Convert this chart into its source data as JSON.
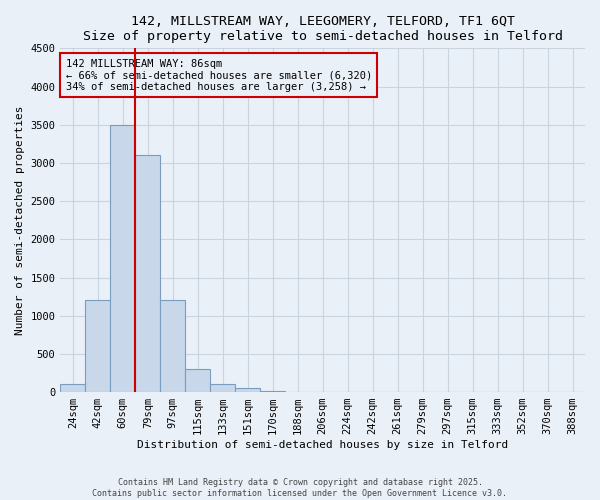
{
  "title1": "142, MILLSTREAM WAY, LEEGOMERY, TELFORD, TF1 6QT",
  "title2": "Size of property relative to semi-detached houses in Telford",
  "xlabel": "Distribution of semi-detached houses by size in Telford",
  "ylabel": "Number of semi-detached properties",
  "categories": [
    "24sqm",
    "42sqm",
    "60sqm",
    "79sqm",
    "97sqm",
    "115sqm",
    "133sqm",
    "151sqm",
    "170sqm",
    "188sqm",
    "206sqm",
    "224sqm",
    "242sqm",
    "261sqm",
    "279sqm",
    "297sqm",
    "315sqm",
    "333sqm",
    "352sqm",
    "370sqm",
    "388sqm"
  ],
  "values": [
    100,
    1200,
    3500,
    3100,
    1200,
    300,
    100,
    50,
    20,
    5,
    2,
    1,
    0,
    0,
    0,
    0,
    0,
    0,
    0,
    0,
    0
  ],
  "bar_color": "#c8d8ea",
  "bar_edge_color": "#7a9cbf",
  "red_line_bin": 3,
  "annotation_title": "142 MILLSTREAM WAY: 86sqm",
  "annotation_line1": "← 66% of semi-detached houses are smaller (6,320)",
  "annotation_line2": "34% of semi-detached houses are larger (3,258) →",
  "annotation_box_color": "#cc0000",
  "ylim": [
    0,
    4500
  ],
  "yticks": [
    0,
    500,
    1000,
    1500,
    2000,
    2500,
    3000,
    3500,
    4000,
    4500
  ],
  "footnote1": "Contains HM Land Registry data © Crown copyright and database right 2025.",
  "footnote2": "Contains public sector information licensed under the Open Government Licence v3.0.",
  "bg_color": "#eaf0f8",
  "grid_color": "#c8d4e0",
  "title_fontsize": 9.5,
  "axis_label_fontsize": 8,
  "tick_fontsize": 7.5
}
